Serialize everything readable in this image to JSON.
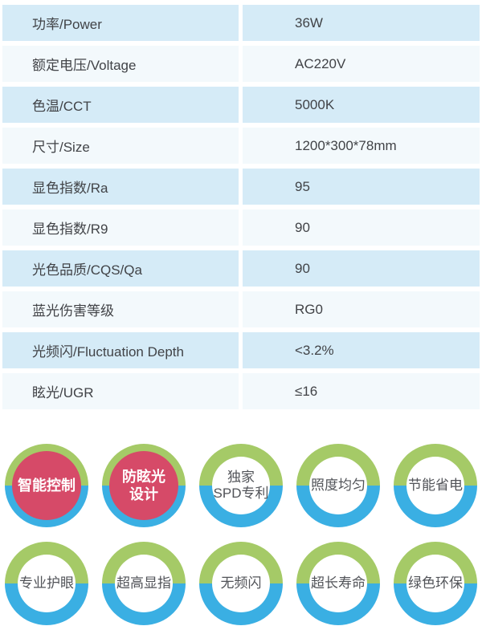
{
  "table": {
    "rows": [
      {
        "label": "功率/Power",
        "value": "36W"
      },
      {
        "label": "额定电压/Voltage",
        "value": "AC220V"
      },
      {
        "label": "色温/CCT",
        "value": "5000K"
      },
      {
        "label": "尺寸/Size",
        "value": "1200*300*78mm"
      },
      {
        "label": "显色指数/Ra",
        "value": "95"
      },
      {
        "label": "显色指数/R9",
        "value": "90"
      },
      {
        "label": "光色品质/CQS/Qa",
        "value": "90"
      },
      {
        "label": "蓝光伤害等级",
        "value": "RG0"
      },
      {
        "label": "光频闪/Fluctuation Depth",
        "value": "<3.2%"
      },
      {
        "label": "眩光/UGR",
        "value": "≤16"
      }
    ]
  },
  "badges": {
    "row1": [
      {
        "line1": "智能控制",
        "highlight": true
      },
      {
        "line1": "防眩光",
        "line2": "设计",
        "highlight": true
      },
      {
        "line1": "独家",
        "line2": "SPD专利",
        "highlight": false
      },
      {
        "line1": "照度均匀",
        "highlight": false
      },
      {
        "line1": "节能省电",
        "highlight": false
      }
    ],
    "row2": [
      {
        "line1": "专业护眼",
        "highlight": false
      },
      {
        "line1": "超高显指",
        "highlight": false
      },
      {
        "line1": "无频闪",
        "highlight": false
      },
      {
        "line1": "超长寿命",
        "highlight": false
      },
      {
        "line1": "绿色环保",
        "highlight": false
      }
    ]
  },
  "colors": {
    "row_stripe_blue": "#d5ebf7",
    "row_stripe_light": "#f3f9fc",
    "table_text": "#414347",
    "ring_green": "#a5ca67",
    "ring_blue": "#3aafe3",
    "badge_highlight_red": "#d64a68",
    "badge_text_dark": "#515358",
    "badge_text_light": "#ffffff"
  }
}
